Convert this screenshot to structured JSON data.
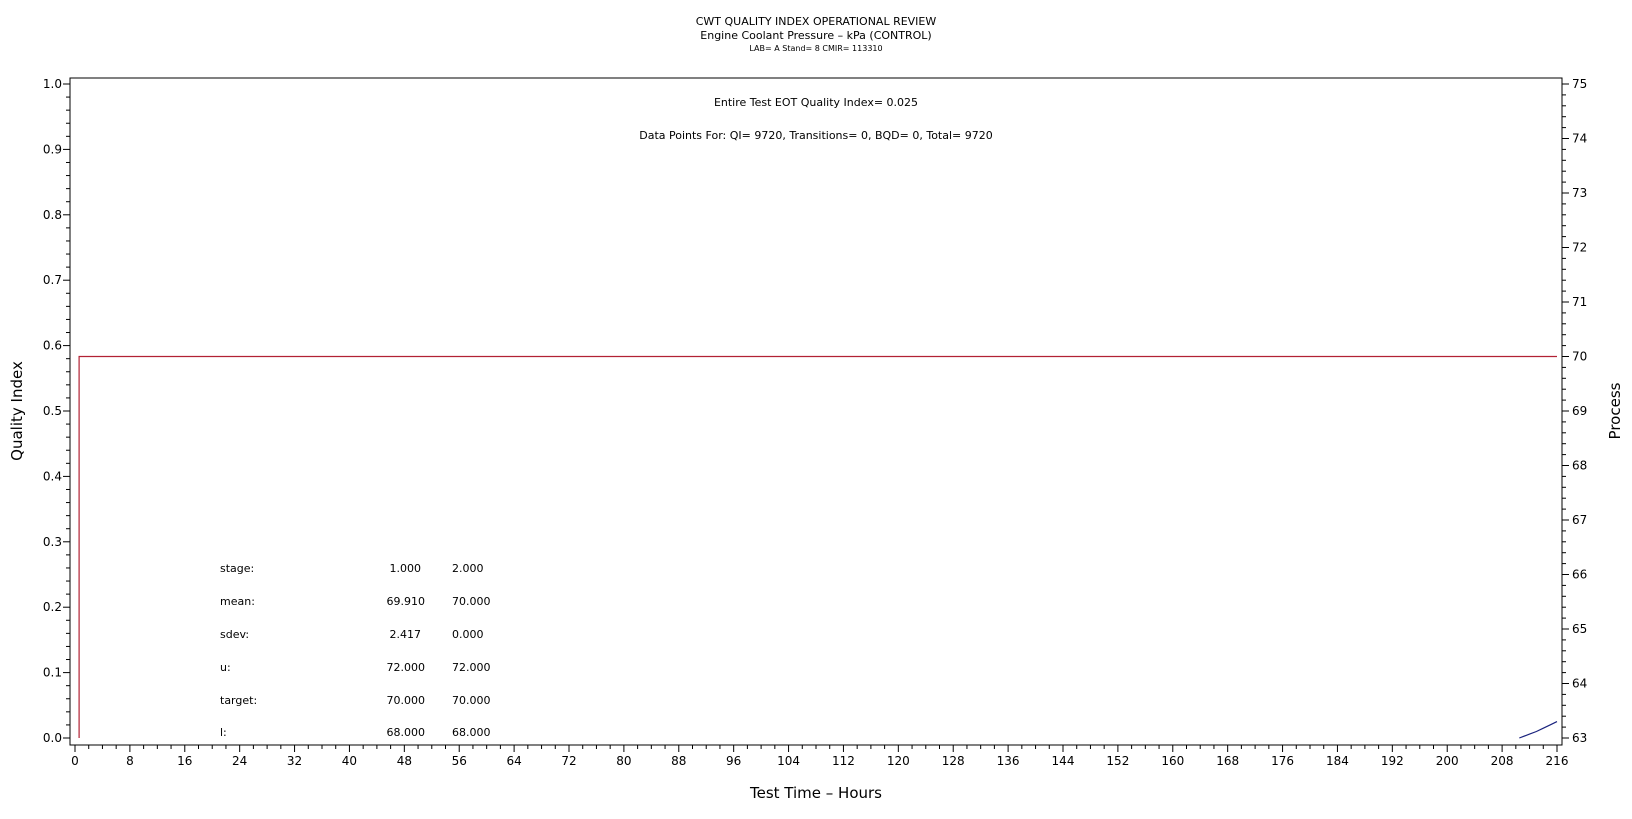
{
  "header": {
    "title": "CWT QUALITY INDEX OPERATIONAL REVIEW",
    "subtitle": "Engine Coolant Pressure – kPa (CONTROL)",
    "sub_subtitle": "LAB= A Stand= 8 CMIR= 113310"
  },
  "annotations": {
    "quality_index_text": "Entire Test EOT Quality Index=   0.025",
    "data_points_text": "Data Points For: QI=  9720, Transitions=     0, BQD=     0, Total=  9720"
  },
  "stats_table": {
    "rows": [
      {
        "label": "stage:",
        "v1": "1.000",
        "v2": "2.000"
      },
      {
        "label": "mean:",
        "v1": "69.910",
        "v2": "70.000"
      },
      {
        "label": "sdev:",
        "v1": "2.417",
        "v2": "0.000"
      },
      {
        "label": "u:",
        "v1": "72.000",
        "v2": "72.000"
      },
      {
        "label": "target:",
        "v1": "70.000",
        "v2": "70.000"
      },
      {
        "label": "l:",
        "v1": "68.000",
        "v2": "68.000"
      }
    ]
  },
  "colors": {
    "process_line": "#b22234",
    "quality_line": "#1a237e",
    "axis": "#000000"
  },
  "chart_data": {
    "type": "line",
    "xlabel": "Test Time – Hours",
    "ylabel": "Quality Index",
    "y2label": "Process",
    "xlim": [
      0,
      216
    ],
    "ylim": [
      0,
      1
    ],
    "y2lim": [
      63,
      75
    ],
    "x_ticks": [
      0,
      8,
      16,
      24,
      32,
      40,
      48,
      56,
      64,
      72,
      80,
      88,
      96,
      104,
      112,
      120,
      128,
      136,
      144,
      152,
      160,
      168,
      176,
      184,
      192,
      200,
      208,
      216
    ],
    "y_ticks": [
      "0.0",
      "0.1",
      "0.2",
      "0.3",
      "0.4",
      "0.5",
      "0.6",
      "0.7",
      "0.8",
      "0.9",
      "1.0"
    ],
    "y2_ticks": [
      63,
      64,
      65,
      66,
      67,
      68,
      69,
      70,
      71,
      72,
      73,
      74,
      75
    ],
    "grid": false,
    "series": [
      {
        "axis": "right",
        "color": "#b22234",
        "x": [
          0.6,
          0.6,
          216
        ],
        "y": [
          63,
          70,
          70
        ]
      },
      {
        "axis": "left",
        "color": "#1a237e",
        "x": [
          210.5,
          211.5,
          212,
          213,
          214,
          215,
          216
        ],
        "y": [
          0.0,
          0.004,
          0.006,
          0.01,
          0.015,
          0.02,
          0.025
        ]
      }
    ]
  }
}
